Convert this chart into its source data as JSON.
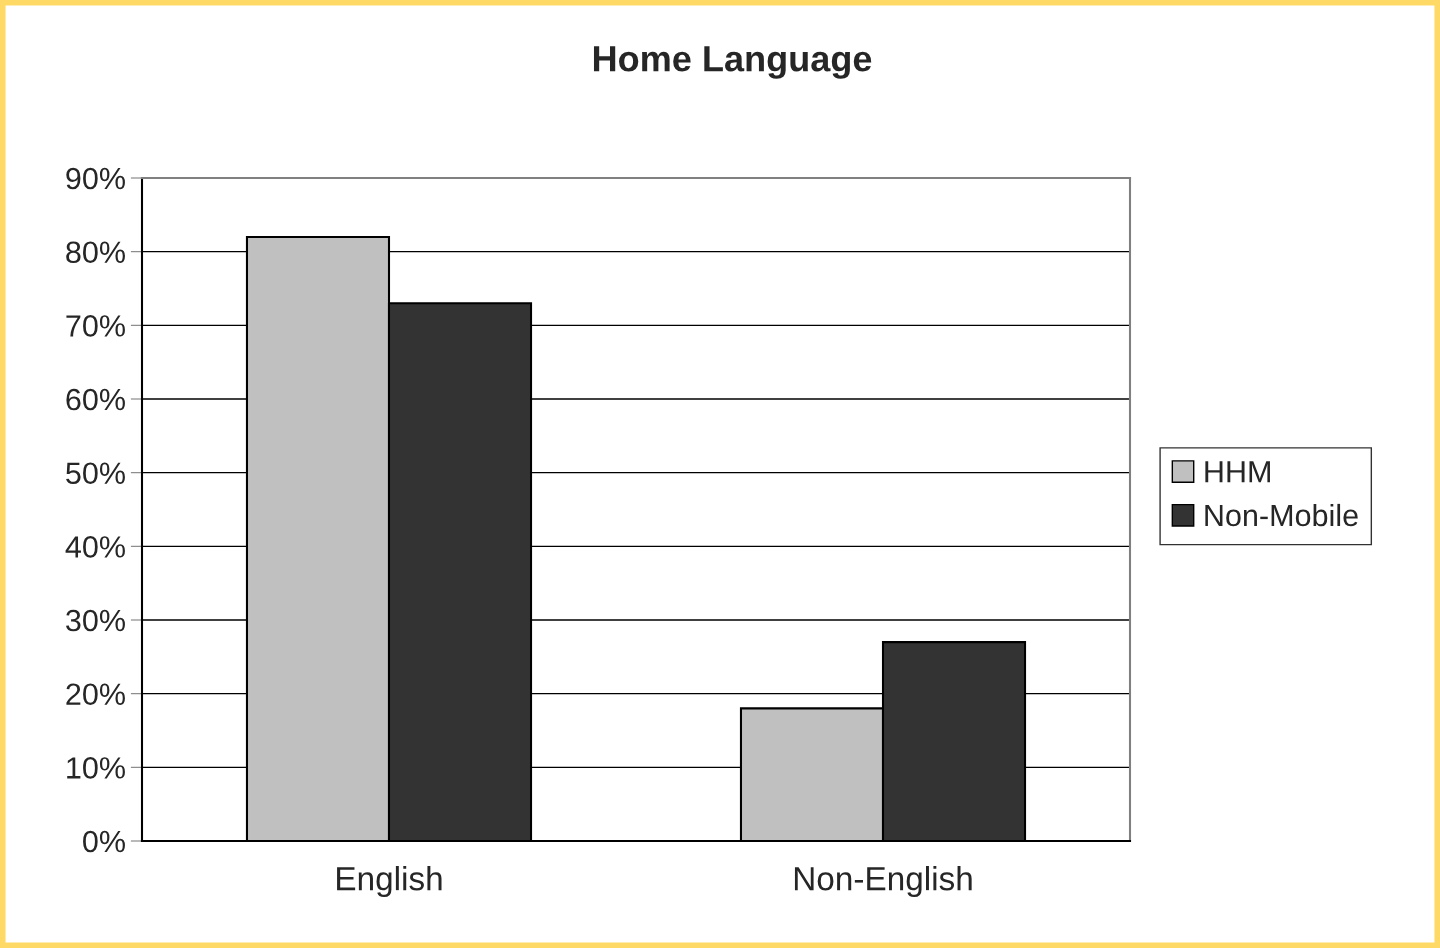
{
  "chart_data": {
    "type": "bar",
    "title": "Home Language",
    "categories": [
      "English",
      "Non-English"
    ],
    "series": [
      {
        "name": "HHM",
        "color": "#c0c0c0",
        "values": [
          82,
          18
        ]
      },
      {
        "name": "Non-Mobile",
        "color": "#333333",
        "values": [
          73,
          27
        ]
      }
    ],
    "ylim": [
      0,
      90
    ],
    "yticks": [
      {
        "value": 0,
        "label": "0%"
      },
      {
        "value": 10,
        "label": "10%"
      },
      {
        "value": 20,
        "label": "20%"
      },
      {
        "value": 30,
        "label": "30%"
      },
      {
        "value": 40,
        "label": "40%"
      },
      {
        "value": 50,
        "label": "50%"
      },
      {
        "value": 60,
        "label": "60%"
      },
      {
        "value": 70,
        "label": "70%"
      },
      {
        "value": 80,
        "label": "80%"
      },
      {
        "value": 90,
        "label": "90%"
      }
    ],
    "grid": "y",
    "legend": "right"
  }
}
